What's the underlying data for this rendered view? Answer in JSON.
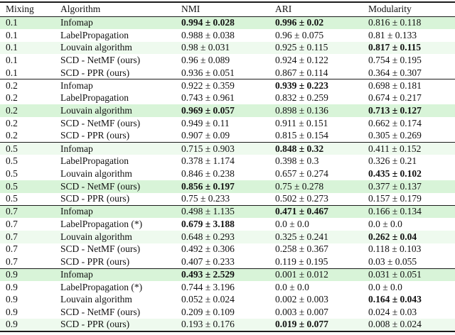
{
  "colors": {
    "row_green": "#d8f4d8",
    "row_lightgreen": "#eefaee",
    "border": "#1c1c1c",
    "text": "#111111"
  },
  "table": {
    "columns": [
      {
        "key": "mixing",
        "label": "Mixing"
      },
      {
        "key": "algorithm",
        "label": "Algorithm"
      },
      {
        "key": "nmi",
        "label": "NMI"
      },
      {
        "key": "ari",
        "label": "ARI"
      },
      {
        "key": "modularity",
        "label": "Modularity"
      }
    ],
    "rows": [
      {
        "mixing": "0.1",
        "algorithm": "Infomap",
        "bg": "green",
        "nmi": "0.994 ± 0.028",
        "nmi_bold": true,
        "ari": "0.996 ± 0.02",
        "ari_bold": true,
        "mod": "0.816 ± 0.118",
        "mod_bold": false
      },
      {
        "mixing": "0.1",
        "algorithm": "LabelPropagation",
        "bg": "",
        "nmi": "0.988 ± 0.038",
        "nmi_bold": false,
        "ari": "0.96 ± 0.075",
        "ari_bold": false,
        "mod": "0.81 ± 0.133",
        "mod_bold": false
      },
      {
        "mixing": "0.1",
        "algorithm": "Louvain algorithm",
        "bg": "lightgreen",
        "nmi": "0.98 ± 0.031",
        "nmi_bold": false,
        "ari": "0.925 ± 0.115",
        "ari_bold": false,
        "mod": "0.817 ± 0.115",
        "mod_bold": true
      },
      {
        "mixing": "0.1",
        "algorithm": "SCD - NetMF (ours)",
        "bg": "",
        "nmi": "0.96 ± 0.089",
        "nmi_bold": false,
        "ari": "0.924 ± 0.122",
        "ari_bold": false,
        "mod": "0.754 ± 0.195",
        "mod_bold": false
      },
      {
        "mixing": "0.1",
        "algorithm": "SCD - PPR (ours)",
        "bg": "",
        "nmi": "0.936 ± 0.051",
        "nmi_bold": false,
        "ari": "0.867 ± 0.114",
        "ari_bold": false,
        "mod": "0.364 ± 0.307",
        "mod_bold": false
      },
      {
        "mixing": "0.2",
        "algorithm": "Infomap",
        "bg": "",
        "nmi": "0.922 ± 0.359",
        "nmi_bold": false,
        "ari": "0.939 ± 0.223",
        "ari_bold": true,
        "mod": "0.698 ± 0.181",
        "mod_bold": false
      },
      {
        "mixing": "0.2",
        "algorithm": "LabelPropagation",
        "bg": "",
        "nmi": "0.743 ± 0.961",
        "nmi_bold": false,
        "ari": "0.832 ± 0.259",
        "ari_bold": false,
        "mod": "0.674 ± 0.217",
        "mod_bold": false
      },
      {
        "mixing": "0.2",
        "algorithm": "Louvain algorithm",
        "bg": "green",
        "nmi": "0.969 ± 0.057",
        "nmi_bold": true,
        "ari": "0.898 ± 0.136",
        "ari_bold": false,
        "mod": "0.713 ± 0.127",
        "mod_bold": true
      },
      {
        "mixing": "0.2",
        "algorithm": "SCD - NetMF (ours)",
        "bg": "",
        "nmi": "0.949 ± 0.11",
        "nmi_bold": false,
        "ari": "0.911 ± 0.151",
        "ari_bold": false,
        "mod": "0.662 ± 0.174",
        "mod_bold": false
      },
      {
        "mixing": "0.2",
        "algorithm": "SCD - PPR (ours)",
        "bg": "",
        "nmi": "0.907 ± 0.09",
        "nmi_bold": false,
        "ari": "0.815 ± 0.154",
        "ari_bold": false,
        "mod": "0.305 ± 0.269",
        "mod_bold": false
      },
      {
        "mixing": "0.5",
        "algorithm": "Infomap",
        "bg": "lightgreen",
        "nmi": "0.715 ± 0.903",
        "nmi_bold": false,
        "ari": "0.848 ± 0.32",
        "ari_bold": true,
        "mod": "0.411 ± 0.152",
        "mod_bold": false
      },
      {
        "mixing": "0.5",
        "algorithm": "LabelPropagation",
        "bg": "",
        "nmi": "0.378 ± 1.174",
        "nmi_bold": false,
        "ari": "0.398 ± 0.3",
        "ari_bold": false,
        "mod": "0.326 ± 0.21",
        "mod_bold": false
      },
      {
        "mixing": "0.5",
        "algorithm": "Louvain algorithm",
        "bg": "",
        "nmi": "0.846 ± 0.238",
        "nmi_bold": false,
        "ari": "0.657 ± 0.274",
        "ari_bold": false,
        "mod": "0.435 ± 0.102",
        "mod_bold": true
      },
      {
        "mixing": "0.5",
        "algorithm": "SCD - NetMF (ours)",
        "bg": "green",
        "nmi": "0.856 ± 0.197",
        "nmi_bold": true,
        "ari": "0.75 ± 0.278",
        "ari_bold": false,
        "mod": "0.377 ± 0.137",
        "mod_bold": false
      },
      {
        "mixing": "0.5",
        "algorithm": "SCD - PPR (ours)",
        "bg": "",
        "nmi": "0.75 ± 0.233",
        "nmi_bold": false,
        "ari": "0.502 ± 0.273",
        "ari_bold": false,
        "mod": "0.157 ± 0.179",
        "mod_bold": false
      },
      {
        "mixing": "0.7",
        "algorithm": "Infomap",
        "bg": "green",
        "nmi": "0.498 ± 1.135",
        "nmi_bold": false,
        "ari": "0.471 ± 0.467",
        "ari_bold": true,
        "mod": "0.166 ± 0.134",
        "mod_bold": false
      },
      {
        "mixing": "0.7",
        "algorithm": "LabelPropagation (*)",
        "bg": "",
        "nmi": "0.679 ± 3.188",
        "nmi_bold": true,
        "ari": "0.0 ± 0.0",
        "ari_bold": false,
        "mod": "0.0 ± 0.0",
        "mod_bold": false
      },
      {
        "mixing": "0.7",
        "algorithm": "Louvain algorithm",
        "bg": "lightgreen",
        "nmi": "0.648 ± 0.293",
        "nmi_bold": false,
        "ari": "0.325 ± 0.241",
        "ari_bold": false,
        "mod": "0.262 ± 0.04",
        "mod_bold": true
      },
      {
        "mixing": "0.7",
        "algorithm": "SCD - NetMF (ours)",
        "bg": "",
        "nmi": "0.492 ± 0.306",
        "nmi_bold": false,
        "ari": "0.258 ± 0.367",
        "ari_bold": false,
        "mod": "0.118 ± 0.103",
        "mod_bold": false
      },
      {
        "mixing": "0.7",
        "algorithm": "SCD - PPR (ours)",
        "bg": "",
        "nmi": "0.407 ± 0.233",
        "nmi_bold": false,
        "ari": "0.119 ± 0.195",
        "ari_bold": false,
        "mod": "0.03 ± 0.055",
        "mod_bold": false
      },
      {
        "mixing": "0.9",
        "algorithm": "Infomap",
        "bg": "green",
        "nmi": "0.493 ± 2.529",
        "nmi_bold": true,
        "ari": "0.001 ± 0.012",
        "ari_bold": false,
        "mod": "0.031 ± 0.051",
        "mod_bold": false
      },
      {
        "mixing": "0.9",
        "algorithm": "LabelPropagation (*)",
        "bg": "",
        "nmi": "0.744 ± 3.196",
        "nmi_bold": false,
        "ari": "0.0 ± 0.0",
        "ari_bold": false,
        "mod": "0.0 ± 0.0",
        "mod_bold": false
      },
      {
        "mixing": "0.9",
        "algorithm": "Louvain algorithm",
        "bg": "",
        "nmi": "0.052 ± 0.024",
        "nmi_bold": false,
        "ari": "0.002 ± 0.003",
        "ari_bold": false,
        "mod": "0.164 ± 0.043",
        "mod_bold": true
      },
      {
        "mixing": "0.9",
        "algorithm": "SCD - NetMF (ours)",
        "bg": "",
        "nmi": "0.209 ± 0.109",
        "nmi_bold": false,
        "ari": "0.003 ± 0.007",
        "ari_bold": false,
        "mod": "0.024 ± 0.03",
        "mod_bold": false
      },
      {
        "mixing": "0.9",
        "algorithm": "SCD - PPR (ours)",
        "bg": "lightgreen",
        "nmi": "0.193 ± 0.176",
        "nmi_bold": false,
        "ari": "0.019 ± 0.077",
        "ari_bold": true,
        "mod": "0.008 ± 0.024",
        "mod_bold": false
      }
    ]
  }
}
